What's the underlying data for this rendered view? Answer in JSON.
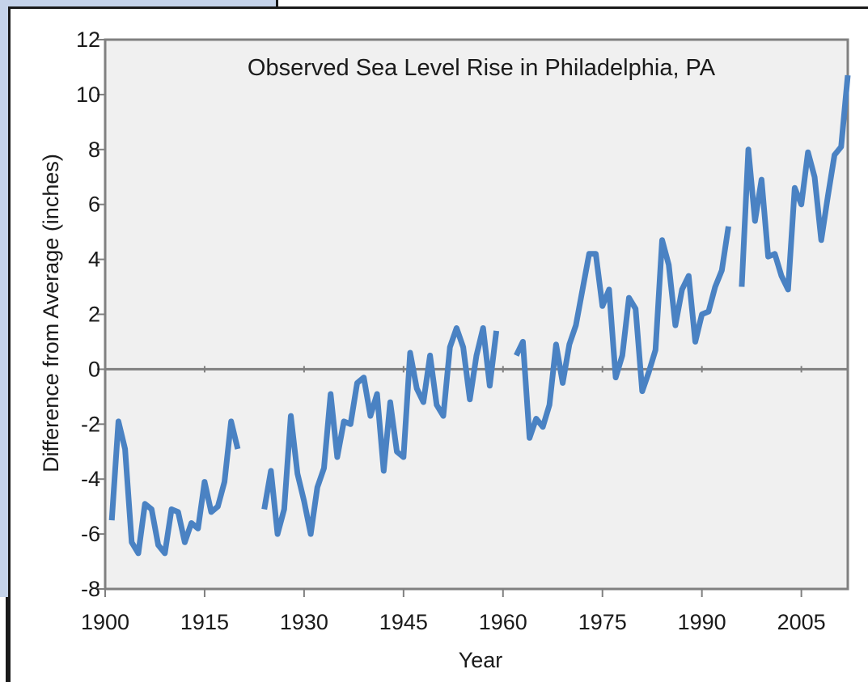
{
  "chart_data": {
    "type": "line",
    "title": "Observed Sea Level Rise in Philadelphia, PA",
    "xlabel": "Year",
    "ylabel": "Difference from Average (inches)",
    "xlim": [
      1900,
      2012
    ],
    "ylim": [
      -8,
      12
    ],
    "x_ticks": [
      1900,
      1915,
      1930,
      1945,
      1960,
      1975,
      1990,
      2005
    ],
    "y_ticks": [
      -8,
      -6,
      -4,
      -2,
      0,
      2,
      4,
      6,
      8,
      10,
      12
    ],
    "grid": false,
    "zero_line": true,
    "series": [
      {
        "color": "#4a82c3",
        "segments": [
          [
            [
              1901,
              -5.5
            ],
            [
              1902,
              -1.9
            ],
            [
              1903,
              -2.9
            ],
            [
              1904,
              -6.3
            ],
            [
              1905,
              -6.7
            ],
            [
              1906,
              -4.9
            ],
            [
              1907,
              -5.1
            ],
            [
              1908,
              -6.4
            ],
            [
              1909,
              -6.7
            ],
            [
              1910,
              -5.1
            ],
            [
              1911,
              -5.2
            ],
            [
              1912,
              -6.3
            ],
            [
              1913,
              -5.6
            ],
            [
              1914,
              -5.8
            ],
            [
              1915,
              -4.1
            ],
            [
              1916,
              -5.2
            ],
            [
              1917,
              -5.0
            ],
            [
              1918,
              -4.1
            ],
            [
              1919,
              -1.9
            ],
            [
              1920,
              -2.9
            ]
          ],
          [
            [
              1924,
              -5.1
            ],
            [
              1925,
              -3.7
            ],
            [
              1926,
              -6.0
            ],
            [
              1927,
              -5.1
            ],
            [
              1928,
              -1.7
            ],
            [
              1929,
              -3.8
            ],
            [
              1930,
              -4.8
            ],
            [
              1931,
              -6.0
            ],
            [
              1932,
              -4.3
            ],
            [
              1933,
              -3.6
            ],
            [
              1934,
              -0.9
            ],
            [
              1935,
              -3.2
            ],
            [
              1936,
              -1.9
            ],
            [
              1937,
              -2.0
            ],
            [
              1938,
              -0.5
            ],
            [
              1939,
              -0.3
            ],
            [
              1940,
              -1.7
            ],
            [
              1941,
              -0.9
            ],
            [
              1942,
              -3.7
            ],
            [
              1943,
              -1.2
            ],
            [
              1944,
              -3.0
            ],
            [
              1945,
              -3.2
            ],
            [
              1946,
              0.6
            ],
            [
              1947,
              -0.7
            ],
            [
              1948,
              -1.2
            ],
            [
              1949,
              0.5
            ],
            [
              1950,
              -1.3
            ],
            [
              1951,
              -1.7
            ],
            [
              1952,
              0.8
            ],
            [
              1953,
              1.5
            ],
            [
              1954,
              0.8
            ],
            [
              1955,
              -1.1
            ],
            [
              1956,
              0.5
            ],
            [
              1957,
              1.5
            ],
            [
              1958,
              -0.6
            ],
            [
              1959,
              1.4
            ]
          ],
          [
            [
              1962,
              0.5
            ],
            [
              1963,
              1.0
            ],
            [
              1964,
              -2.5
            ],
            [
              1965,
              -1.8
            ],
            [
              1966,
              -2.1
            ],
            [
              1967,
              -1.3
            ],
            [
              1968,
              0.9
            ],
            [
              1969,
              -0.5
            ],
            [
              1970,
              0.9
            ],
            [
              1971,
              1.6
            ],
            [
              1972,
              2.9
            ],
            [
              1973,
              4.2
            ],
            [
              1974,
              4.2
            ],
            [
              1975,
              2.3
            ],
            [
              1976,
              2.9
            ],
            [
              1977,
              -0.3
            ],
            [
              1978,
              0.5
            ],
            [
              1979,
              2.6
            ],
            [
              1980,
              2.2
            ],
            [
              1981,
              -0.8
            ],
            [
              1982,
              -0.1
            ],
            [
              1983,
              0.7
            ],
            [
              1984,
              4.7
            ],
            [
              1985,
              3.8
            ],
            [
              1986,
              1.6
            ],
            [
              1987,
              2.9
            ],
            [
              1988,
              3.4
            ],
            [
              1989,
              1.0
            ],
            [
              1990,
              2.0
            ],
            [
              1991,
              2.1
            ],
            [
              1992,
              3.0
            ],
            [
              1993,
              3.6
            ],
            [
              1994,
              5.2
            ]
          ],
          [
            [
              1996,
              3.0
            ],
            [
              1997,
              8.0
            ],
            [
              1998,
              5.4
            ],
            [
              1999,
              6.9
            ],
            [
              2000,
              4.1
            ],
            [
              2001,
              4.2
            ],
            [
              2002,
              3.4
            ],
            [
              2003,
              2.9
            ],
            [
              2004,
              6.6
            ],
            [
              2005,
              6.0
            ],
            [
              2006,
              7.9
            ],
            [
              2007,
              7.0
            ],
            [
              2008,
              4.7
            ],
            [
              2009,
              6.3
            ],
            [
              2010,
              7.8
            ],
            [
              2011,
              8.1
            ],
            [
              2012,
              10.7
            ]
          ]
        ]
      }
    ]
  },
  "colors": {
    "plot_background": "#f0f0f0",
    "axis": "#808080",
    "line": "#4a82c3",
    "left_panel": "#c5d3ea"
  }
}
